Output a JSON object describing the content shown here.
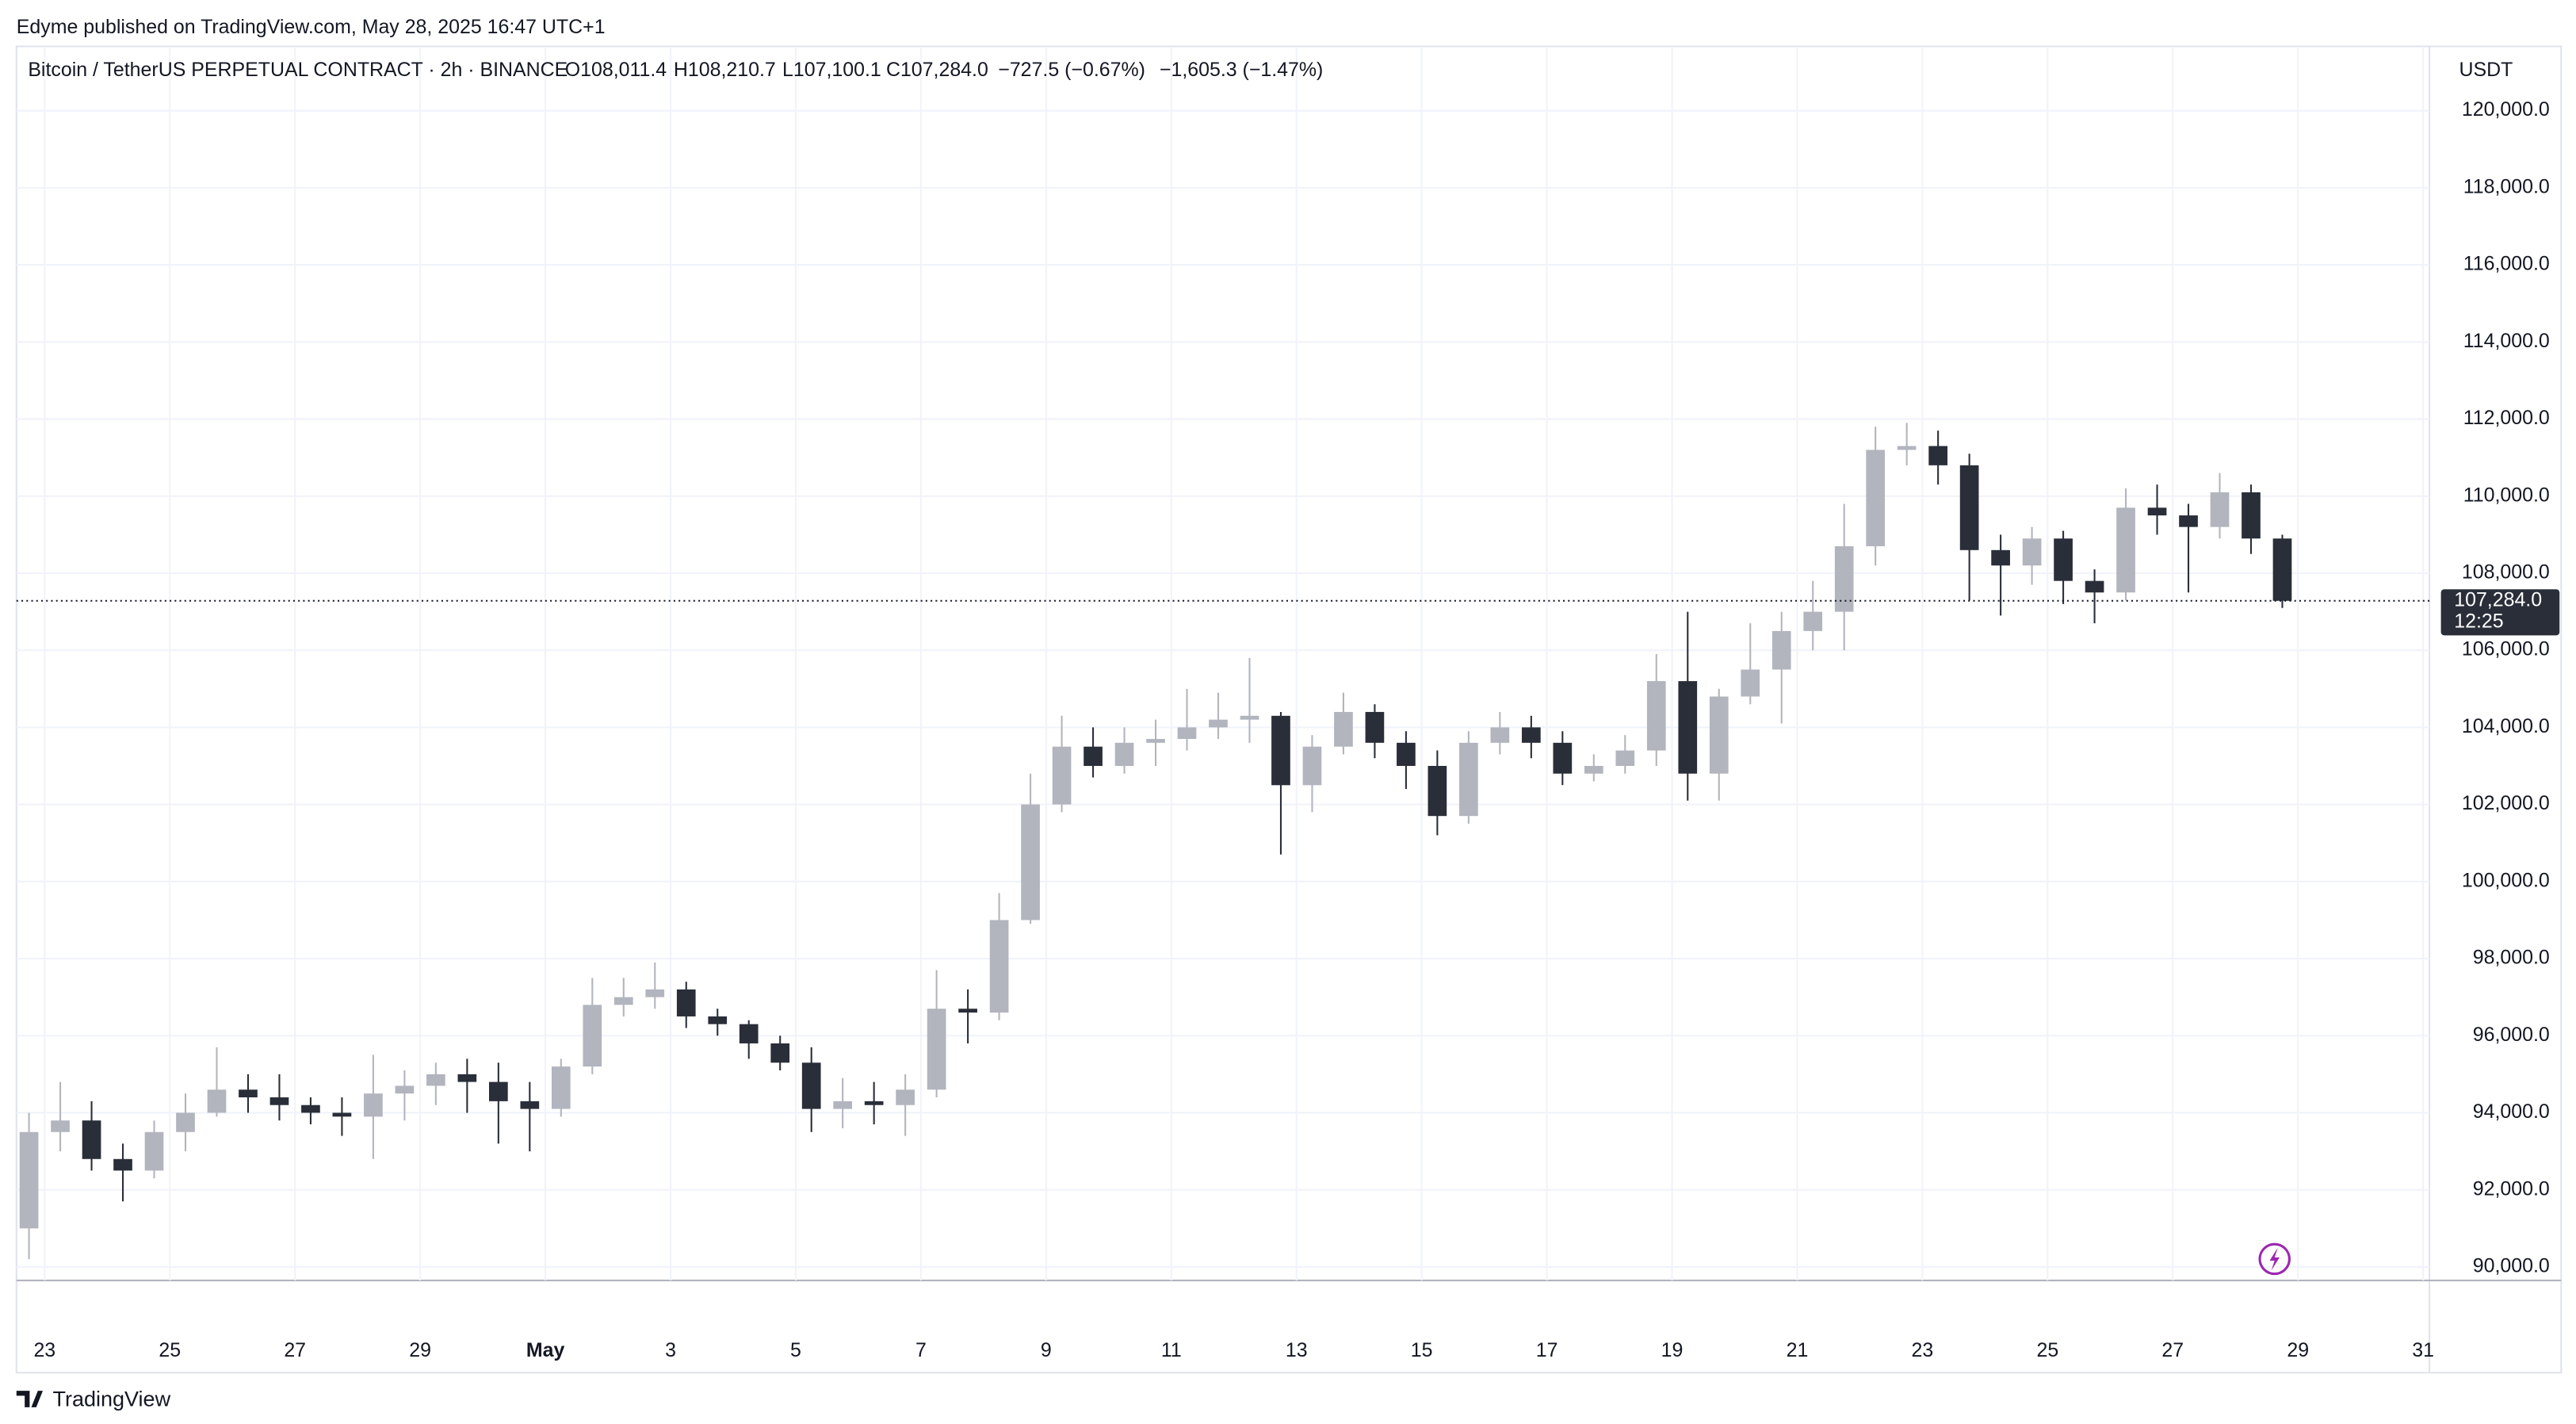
{
  "header": {
    "published": "Edyme published on TradingView.com, May 28, 2025 16:47 UTC+1",
    "symbol": "Bitcoin / TetherUS PERPETUAL CONTRACT · 2h · BINANCE",
    "open": "O108,011.4",
    "high": "H108,210.7",
    "low": "L107,100.1",
    "close": "C107,284.0",
    "change": "−727.5 (−0.67%)",
    "change_day": "−1,605.3 (−1.47%)",
    "currency": "USDT",
    "countdown": "12:25"
  },
  "footer": {
    "brand": "TradingView"
  },
  "chart_data": {
    "type": "candlestick",
    "x": [
      -0.25,
      0.25,
      0.75,
      1.25,
      1.75,
      2.25,
      2.75,
      3.25,
      3.75,
      4.25,
      4.75,
      5.25,
      5.75,
      6.25,
      6.75,
      7.25,
      7.75,
      8.25,
      8.75,
      9.25,
      9.75,
      10.25,
      10.75,
      11.25,
      11.75,
      12.25,
      12.75,
      13.25,
      13.75,
      14.25,
      14.75,
      15.25,
      15.75,
      16.25,
      16.75,
      17.25,
      17.75,
      18.25,
      18.75,
      19.25,
      19.75,
      20.25,
      20.75,
      21.25,
      21.75,
      22.25,
      22.75,
      23.25,
      23.75,
      24.25,
      24.75,
      25.25,
      25.75,
      26.25,
      26.75,
      27.25,
      27.75,
      28.25,
      28.75,
      29.25,
      29.75,
      30.25,
      30.75,
      31.25,
      31.75,
      32.25,
      32.75,
      33.25,
      33.75,
      34.25,
      34.75,
      35.25,
      35.75
    ],
    "open": [
      91000,
      93500,
      93800,
      92800,
      92500,
      93500,
      94000,
      94600,
      94400,
      94200,
      94000,
      93900,
      94500,
      94700,
      95000,
      94800,
      94300,
      94100,
      95200,
      96800,
      97000,
      97200,
      96500,
      96300,
      95800,
      95300,
      94100,
      94300,
      94200,
      94600,
      96700,
      96600,
      99000,
      102000,
      103500,
      103000,
      103600,
      103700,
      104000,
      104200,
      104300,
      102500,
      103500,
      104400,
      103600,
      103000,
      101700,
      103600,
      104000,
      103600,
      102800,
      103000,
      103400,
      105200,
      102800,
      104800,
      105500,
      106500,
      107000,
      108700,
      111200,
      111300,
      110800,
      108600,
      108200,
      108900,
      107800,
      107500,
      109700,
      109500,
      109200,
      110100,
      108900
    ],
    "high": [
      94000,
      94800,
      94300,
      93200,
      93800,
      94500,
      95700,
      95000,
      95000,
      94400,
      94400,
      95500,
      95100,
      95300,
      95400,
      95300,
      94800,
      95400,
      97500,
      97500,
      97900,
      97400,
      96700,
      96400,
      96000,
      95700,
      94900,
      94800,
      95000,
      97700,
      97200,
      99700,
      102800,
      104300,
      104000,
      104000,
      104200,
      105000,
      104900,
      105800,
      104400,
      103800,
      104900,
      104600,
      103900,
      103400,
      103900,
      104400,
      104300,
      103900,
      103300,
      103800,
      105900,
      107000,
      105000,
      106700,
      107000,
      107800,
      109800,
      111800,
      111900,
      111700,
      111100,
      109000,
      109200,
      109100,
      108100,
      110200,
      110300,
      109800,
      110600,
      110300,
      109000
    ],
    "low": [
      90200,
      93000,
      92500,
      91700,
      92300,
      93000,
      93900,
      94000,
      93800,
      93700,
      93400,
      92800,
      93800,
      94200,
      94000,
      93200,
      93000,
      93900,
      95000,
      96500,
      96700,
      96200,
      96000,
      95400,
      95100,
      93500,
      93600,
      93700,
      93400,
      94400,
      95800,
      96400,
      98900,
      101800,
      102700,
      102800,
      103000,
      103400,
      103700,
      103600,
      100700,
      101800,
      103300,
      103200,
      102400,
      101200,
      101500,
      103300,
      103200,
      102500,
      102600,
      102800,
      103000,
      102100,
      102100,
      104600,
      104100,
      106000,
      106000,
      108200,
      110800,
      110300,
      107300,
      106900,
      107700,
      107200,
      106700,
      107300,
      109000,
      107500,
      108900,
      108500,
      107100
    ],
    "close": [
      93500,
      93800,
      92800,
      92500,
      93500,
      94000,
      94600,
      94400,
      94200,
      94000,
      93900,
      94500,
      94700,
      95000,
      94800,
      94300,
      94100,
      95200,
      96800,
      97000,
      97200,
      96500,
      96300,
      95800,
      95300,
      94100,
      94300,
      94200,
      94600,
      96700,
      96600,
      99000,
      102000,
      103500,
      103000,
      103600,
      103700,
      104000,
      104200,
      104300,
      102500,
      103500,
      104400,
      103600,
      103000,
      101700,
      103600,
      104000,
      103600,
      102800,
      103000,
      103400,
      105200,
      102800,
      104800,
      105500,
      106500,
      107000,
      108700,
      111200,
      111300,
      110800,
      108600,
      108200,
      108900,
      107800,
      107500,
      109700,
      109500,
      109200,
      110100,
      108900,
      107284
    ],
    "up_color": "#b2b5be",
    "down_color": "#2a2e39",
    "xlim": [
      -0.45,
      38.1
    ],
    "xticks": [
      {
        "value": 0,
        "label": "23"
      },
      {
        "value": 2,
        "label": "25"
      },
      {
        "value": 4,
        "label": "27"
      },
      {
        "value": 6,
        "label": "29"
      },
      {
        "value": 8,
        "label": "May"
      },
      {
        "value": 10,
        "label": "3"
      },
      {
        "value": 12,
        "label": "5"
      },
      {
        "value": 14,
        "label": "7"
      },
      {
        "value": 16,
        "label": "9"
      },
      {
        "value": 18,
        "label": "11"
      },
      {
        "value": 20,
        "label": "13"
      },
      {
        "value": 22,
        "label": "15"
      },
      {
        "value": 24,
        "label": "17"
      },
      {
        "value": 26,
        "label": "19"
      },
      {
        "value": 28,
        "label": "21"
      },
      {
        "value": 30,
        "label": "23"
      },
      {
        "value": 32,
        "label": "25"
      },
      {
        "value": 34,
        "label": "27"
      },
      {
        "value": 36,
        "label": "29"
      },
      {
        "value": 38,
        "label": "31"
      }
    ],
    "ylim": [
      89650,
      121670
    ],
    "yticks": [
      {
        "value": 90000,
        "label": "90,000.0"
      },
      {
        "value": 92000,
        "label": "92,000.0"
      },
      {
        "value": 94000,
        "label": "94,000.0"
      },
      {
        "value": 96000,
        "label": "96,000.0"
      },
      {
        "value": 98000,
        "label": "98,000.0"
      },
      {
        "value": 100000,
        "label": "100,000.0"
      },
      {
        "value": 102000,
        "label": "102,000.0"
      },
      {
        "value": 104000,
        "label": "104,000.0"
      },
      {
        "value": 106000,
        "label": "106,000.0"
      },
      {
        "value": 108000,
        "label": "108,000.0"
      },
      {
        "value": 110000,
        "label": "110,000.0"
      },
      {
        "value": 112000,
        "label": "112,000.0"
      },
      {
        "value": 114000,
        "label": "114,000.0"
      },
      {
        "value": 116000,
        "label": "116,000.0"
      },
      {
        "value": 118000,
        "label": "118,000.0"
      },
      {
        "value": 120000,
        "label": "120,000.0"
      }
    ],
    "last_price": {
      "value": 107284.0,
      "label": "107,284.0"
    },
    "grid": true
  }
}
